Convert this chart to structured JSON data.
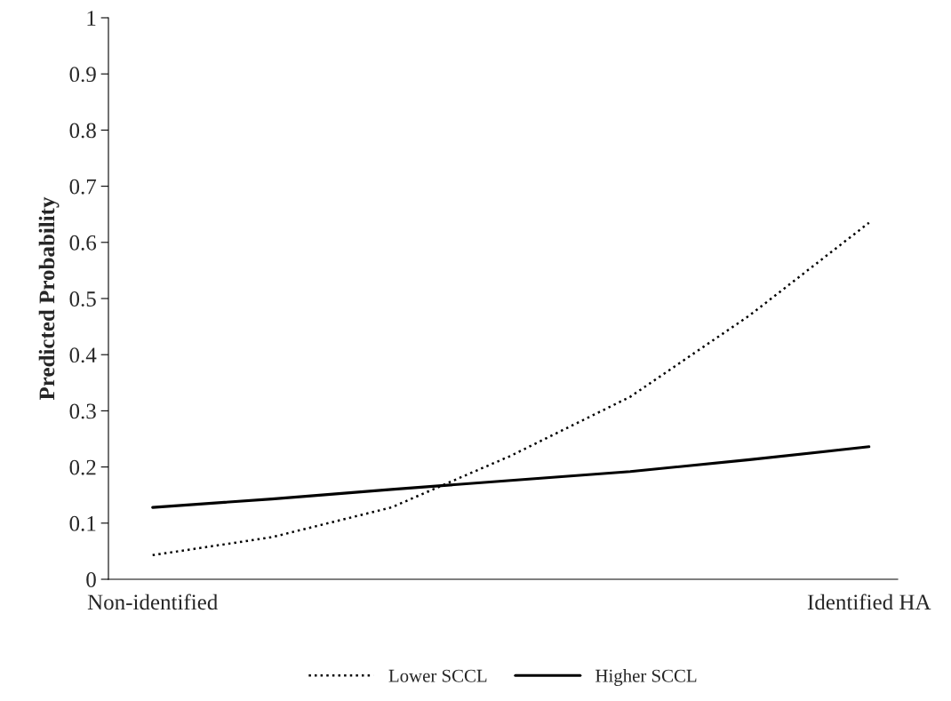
{
  "chart_data": {
    "type": "line",
    "ylabel": "Predicted Probability",
    "categories": [
      "Non-identified",
      null,
      null,
      null,
      null,
      null,
      "Identified HA"
    ],
    "series": [
      {
        "name": "Lower SCCL",
        "color": "#000000",
        "line_style": "dotted",
        "values": [
          0.043,
          0.075,
          0.128,
          0.22,
          0.325,
          0.47,
          0.635
        ]
      },
      {
        "name": "Higher SCCL",
        "color": "#000000",
        "line_style": "solid",
        "values": [
          0.128,
          0.143,
          0.16,
          0.176,
          0.192,
          0.213,
          0.236
        ]
      }
    ],
    "ylim": [
      0,
      1
    ],
    "yticks": [
      0,
      0.1,
      0.2,
      0.3,
      0.4,
      0.5,
      0.6,
      0.7,
      0.8,
      0.9,
      1
    ],
    "grid": false,
    "legend": "bottom",
    "marker": "none"
  }
}
